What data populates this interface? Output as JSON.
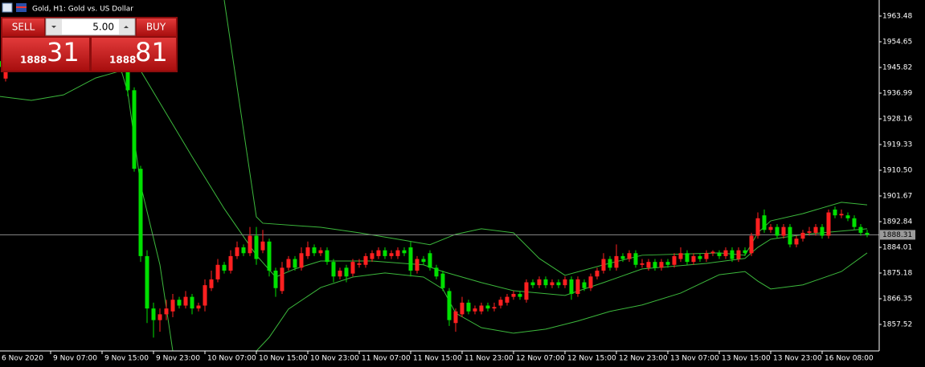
{
  "chart_data": {
    "type": "candlestick",
    "title": "Gold, H1:  Gold vs. US Dollar",
    "categories": [
      "6 Nov 2020",
      null,
      null,
      null,
      null,
      null,
      null,
      null,
      "9 Nov 07:00",
      null,
      null,
      null,
      null,
      null,
      null,
      null,
      "9 Nov 15:00",
      null,
      null,
      null,
      null,
      null,
      null,
      null,
      "9 Nov 23:00",
      null,
      null,
      null,
      null,
      null,
      null,
      null,
      "10 Nov 07:00",
      null,
      null,
      null,
      null,
      null,
      null,
      null,
      "10 Nov 15:00",
      null,
      null,
      null,
      null,
      null,
      null,
      null,
      "10 Nov 23:00",
      null,
      null,
      null,
      null,
      null,
      null,
      null,
      "11 Nov 07:00",
      null,
      null,
      null,
      null,
      null,
      null,
      null,
      "11 Nov 15:00",
      null,
      null,
      null,
      null,
      null,
      null,
      null,
      "11 Nov 23:00",
      null,
      null,
      null,
      null,
      null,
      null,
      null,
      "12 Nov 07:00",
      null,
      null,
      null,
      null,
      null,
      null,
      null,
      "12 Nov 15:00",
      null,
      null,
      null,
      null,
      null,
      null,
      null,
      "12 Nov 23:00",
      null,
      null,
      null,
      null,
      null,
      null,
      null,
      "13 Nov 07:00",
      null,
      null,
      null,
      null,
      null,
      null,
      null,
      "13 Nov 15:00",
      null,
      null,
      null,
      null,
      null,
      null,
      null,
      "13 Nov 23:00",
      null,
      null,
      null,
      null,
      null,
      null,
      null,
      "16 Nov 08:00",
      null,
      null,
      null,
      null,
      null,
      null,
      null
    ],
    "open": [
      1948,
      1942,
      1946,
      1949,
      1951,
      1950,
      1953,
      1952,
      1954,
      1951,
      1952,
      1950,
      1951,
      1949,
      1950,
      1948,
      1949,
      1950,
      1948,
      1947,
      1945,
      1938,
      1911,
      1881,
      1863,
      1859,
      1861,
      1862,
      1866,
      1864,
      1867,
      1863,
      1864,
      1870,
      1873,
      1878,
      1876,
      1881,
      1884,
      1882,
      1888,
      1883,
      1886,
      1876,
      1869,
      1877,
      1880,
      1877,
      1881,
      1884,
      1882,
      1883,
      1879,
      1874,
      1877,
      1875,
      1878,
      1878,
      1880,
      1881,
      1883,
      1881,
      1881,
      1883,
      1884,
      1876,
      1880,
      1882,
      1877,
      1875,
      1869,
      1858,
      1861,
      1865,
      1862,
      1862,
      1864,
      1863,
      1864,
      1865,
      1867,
      1868,
      1866,
      1872,
      1871,
      1873,
      1871,
      1872,
      1871,
      1873,
      1868,
      1872,
      1870,
      1874,
      1876,
      1880,
      1877,
      1881,
      1880,
      1882,
      1878,
      1877,
      1879,
      1877,
      1879,
      1878,
      1880,
      1882,
      1879,
      1881,
      1880,
      1882,
      1882,
      1881,
      1883,
      1880,
      1883,
      1882,
      1888,
      1895,
      1890,
      1891,
      1888,
      1891,
      1885,
      1887,
      1889,
      1889,
      1891,
      1888,
      1897,
      1895,
      1895,
      1894,
      1891,
      1889
    ],
    "high": [
      1950,
      1948,
      1951,
      1953,
      1953,
      1955,
      1955,
      1956,
      1955,
      1954,
      1953,
      1953,
      1952,
      1952,
      1951,
      1951,
      1952,
      1951,
      1950,
      1948,
      1946,
      1939,
      1912,
      1883,
      1865,
      1863,
      1866,
      1868,
      1867,
      1869,
      1868,
      1865,
      1873,
      1876,
      1880,
      1879,
      1883,
      1886,
      1885,
      1891,
      1891,
      1890,
      1887,
      1877,
      1879,
      1881,
      1881,
      1884,
      1886,
      1885,
      1884,
      1884,
      1880,
      1877,
      1878,
      1880,
      1880,
      1882,
      1883,
      1884,
      1884,
      1883,
      1884,
      1884,
      1886,
      1881,
      1881,
      1883,
      1878,
      1876,
      1870,
      1863,
      1867,
      1866,
      1864,
      1865,
      1865,
      1865,
      1867,
      1868,
      1869,
      1869,
      1873,
      1873,
      1874,
      1874,
      1873,
      1873,
      1874,
      1874,
      1874,
      1873,
      1875,
      1877,
      1882,
      1881,
      1885,
      1882,
      1883,
      1883,
      1880,
      1880,
      1880,
      1880,
      1880,
      1882,
      1884,
      1883,
      1882,
      1882,
      1883,
      1883,
      1883,
      1884,
      1884,
      1884,
      1884,
      1889,
      1896,
      1897,
      1892,
      1892,
      1892,
      1892,
      1888,
      1890,
      1891,
      1892,
      1892,
      1897,
      1898,
      1897,
      1896,
      1895,
      1892,
      1890
    ],
    "low": [
      1944,
      1941,
      1945,
      1948,
      1948,
      1949,
      1950,
      1951,
      1950,
      1949,
      1948,
      1949,
      1947,
      1948,
      1947,
      1947,
      1948,
      1947,
      1946,
      1944,
      1936,
      1910,
      1879,
      1858,
      1853,
      1855,
      1859,
      1860,
      1863,
      1863,
      1861,
      1862,
      1862,
      1869,
      1872,
      1875,
      1875,
      1880,
      1881,
      1881,
      1878,
      1882,
      1874,
      1867,
      1868,
      1876,
      1876,
      1876,
      1880,
      1881,
      1881,
      1878,
      1872,
      1873,
      1872,
      1874,
      1877,
      1877,
      1879,
      1880,
      1880,
      1880,
      1880,
      1881,
      1874,
      1875,
      1878,
      1876,
      1873,
      1869,
      1857,
      1855,
      1860,
      1861,
      1861,
      1861,
      1862,
      1862,
      1863,
      1864,
      1866,
      1866,
      1865,
      1870,
      1870,
      1870,
      1870,
      1870,
      1870,
      1866,
      1867,
      1869,
      1869,
      1873,
      1875,
      1876,
      1876,
      1879,
      1879,
      1877,
      1877,
      1876,
      1876,
      1876,
      1877,
      1877,
      1879,
      1878,
      1878,
      1879,
      1879,
      1881,
      1880,
      1880,
      1879,
      1879,
      1881,
      1881,
      1887,
      1889,
      1889,
      1887,
      1887,
      1884,
      1884,
      1886,
      1888,
      1888,
      1887,
      1887,
      1894,
      1894,
      1893,
      1890,
      1888,
      1887.5
    ],
    "close": [
      1946,
      1946,
      1949,
      1951,
      1950,
      1953,
      1952,
      1954,
      1951,
      1952,
      1950,
      1951,
      1949,
      1950,
      1948,
      1949,
      1950,
      1948,
      1947,
      1945,
      1938,
      1911,
      1881,
      1863,
      1859,
      1861,
      1863,
      1866,
      1864,
      1867,
      1863,
      1864,
      1871,
      1873,
      1878,
      1876,
      1881,
      1884,
      1882,
      1888,
      1880,
      1886,
      1876,
      1870,
      1877,
      1880,
      1877,
      1882,
      1884,
      1882,
      1883,
      1879,
      1874,
      1876,
      1874,
      1879,
      1878.5,
      1881,
      1882,
      1883,
      1881,
      1882,
      1883,
      1882,
      1876,
      1880,
      1879,
      1877,
      1874,
      1870,
      1859,
      1862,
      1865,
      1862,
      1863,
      1864,
      1863,
      1863.5,
      1866,
      1867,
      1868,
      1867,
      1872,
      1871,
      1873,
      1871,
      1872,
      1871,
      1873,
      1868,
      1873,
      1870,
      1874,
      1876,
      1880,
      1877,
      1881,
      1880,
      1882,
      1878,
      1878.5,
      1879,
      1877,
      1879,
      1878,
      1881,
      1882,
      1879,
      1881,
      1880,
      1882,
      1882.5,
      1881,
      1883,
      1880,
      1883,
      1882,
      1888,
      1894,
      1890,
      1891,
      1888,
      1891,
      1885,
      1887,
      1889,
      1889.5,
      1891,
      1888,
      1896,
      1895,
      1895.5,
      1894,
      1891,
      1889,
      1888.31
    ],
    "up_color": "#ff2020",
    "down_color": "#00e000",
    "ylim": [
      1848.41,
      1969.0
    ],
    "yticks": [
      1963.48,
      1954.65,
      1945.82,
      1936.99,
      1928.16,
      1919.33,
      {
        "value": 1910.5,
        "label": "1910.50"
      },
      1901.67,
      1892.84,
      1884.01,
      1875.18,
      1866.35,
      1857.52
    ],
    "indicator_color": "#3cb83c",
    "indicator": [
      {
        "x": [
          35,
          40,
          41,
          50,
          56,
          62,
          67,
          71,
          75,
          80,
          84,
          88,
          94,
          100,
          112,
          116,
          118,
          120,
          125,
          131,
          135
        ],
        "values": [
          1969.0,
          1894.5,
          1892.3,
          1890.9,
          1889.0,
          1886.8,
          1884.9,
          1888.5,
          1890.4,
          1889.0,
          1880.2,
          1874.4,
          1878.0,
          1881.3,
          1882.1,
          1881.3,
          1889.0,
          1893.1,
          1895.6,
          1899.5,
          1898.6
        ]
      },
      {
        "x": [
          20,
          22,
          30,
          35,
          40,
          43,
          46,
          50,
          58,
          66,
          69,
          75,
          80,
          88,
          94,
          100,
          110,
          116,
          118,
          120,
          125,
          135
        ],
        "values": [
          1950.0,
          1944.7,
          1915.2,
          1897.3,
          1881.3,
          1873.8,
          1876.6,
          1879.3,
          1879.3,
          1878.0,
          1875.7,
          1871.9,
          1869.1,
          1867.5,
          1871.9,
          1876.6,
          1878.5,
          1880.2,
          1884.0,
          1886.8,
          1888.4,
          1890.4
        ]
      },
      {
        "x": [
          0,
          5,
          10,
          15,
          19,
          20,
          22,
          25,
          27,
          28,
          33,
          38,
          40,
          42,
          45,
          50,
          55,
          60,
          66,
          69,
          71,
          75,
          80,
          85,
          90,
          95,
          100,
          106,
          112,
          116,
          118,
          120,
          125,
          131,
          135
        ],
        "values": [
          1935.9,
          1934.5,
          1936.4,
          1942.2,
          1944.7,
          1937.3,
          1905.5,
          1878.0,
          1848.4,
          1843,
          1838,
          1843,
          1848.4,
          1853.1,
          1862.8,
          1870.2,
          1873.8,
          1875.2,
          1873.8,
          1869.7,
          1861.4,
          1856.4,
          1854.5,
          1855.9,
          1858.7,
          1862.0,
          1864.2,
          1868.3,
          1874.6,
          1875.7,
          1872.4,
          1869.7,
          1871.1,
          1875.7,
          1882.1
        ]
      }
    ],
    "current_price": 1888.31
  },
  "trade_panel": {
    "sell": "SELL",
    "buy": "BUY",
    "volume": "5.00",
    "bid_big": "1888",
    "bid_pips": "31",
    "ask_big": "1888",
    "ask_pips": "81"
  }
}
